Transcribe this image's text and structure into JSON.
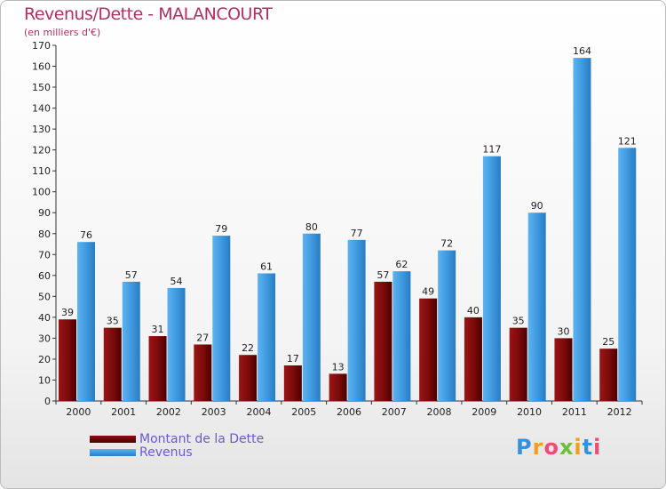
{
  "chart_data": {
    "type": "bar",
    "title": "Revenus/Dette - MALANCOURT",
    "subtitle": "(en milliers d'€)",
    "categories": [
      "2000",
      "2001",
      "2002",
      "2003",
      "2004",
      "2005",
      "2006",
      "2007",
      "2008",
      "2009",
      "2010",
      "2011",
      "2012"
    ],
    "series": [
      {
        "name": "Montant de la Dette",
        "color": "#7a0a0a",
        "values": [
          39,
          35,
          31,
          27,
          22,
          17,
          13,
          57,
          49,
          40,
          35,
          30,
          25
        ]
      },
      {
        "name": "Revenus",
        "color": "#4aa3e6",
        "values": [
          76,
          57,
          54,
          79,
          61,
          80,
          77,
          62,
          72,
          117,
          90,
          164,
          121
        ]
      }
    ],
    "ylim": [
      0,
      170
    ],
    "yticks": [
      0,
      10,
      20,
      30,
      40,
      50,
      60,
      70,
      80,
      90,
      100,
      110,
      120,
      130,
      140,
      150,
      160,
      170
    ],
    "grid": false,
    "legend": "bottom-left"
  },
  "logo": {
    "text": "Proxiti",
    "letters": [
      "P",
      "r",
      "o",
      "x",
      "i",
      "t",
      "i"
    ],
    "colors": [
      "#3a8fd8",
      "#f39c1f",
      "#e94e77",
      "#6cbf3a",
      "#f39c1f",
      "#3a8fd8",
      "#e94e77"
    ]
  }
}
